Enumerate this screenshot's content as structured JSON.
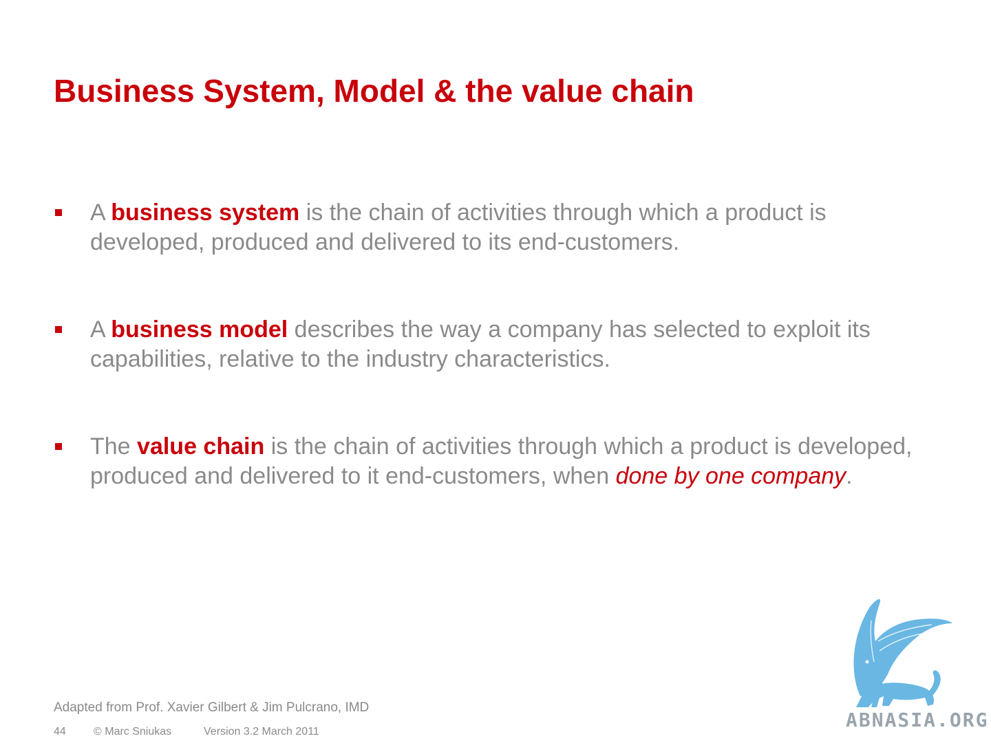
{
  "slide": {
    "title": "Business System, Model & the value chain"
  },
  "bullets": [
    {
      "prefix": "A ",
      "term": "business system",
      "rest": " is the chain of activities through which a product is developed, produced and delivered to its end-customers."
    },
    {
      "prefix": "A ",
      "term": "business model",
      "rest": " describes the way a company has selected to exploit its capabilities, relative to the industry characteristics."
    },
    {
      "prefix": "The ",
      "term": "value chain",
      "rest": " is the chain of activities through which a product is developed, produced and delivered to it end-customers, when ",
      "emphasis": "done by one company",
      "suffix": "."
    }
  ],
  "source_note": "Adapted from Prof. Xavier Gilbert & Jim Pulcrano, IMD",
  "footer": {
    "page_number": "44",
    "copyright": "© Marc Sniukas",
    "version": "Version 3.2 March 2011"
  },
  "watermark": {
    "text": "ABNASIA.ORG",
    "logo_icon": "griffin-icon"
  },
  "colors": {
    "accent": "#c8000a",
    "body_text": "#8a8a8a",
    "logo": "#6ab7e3"
  }
}
